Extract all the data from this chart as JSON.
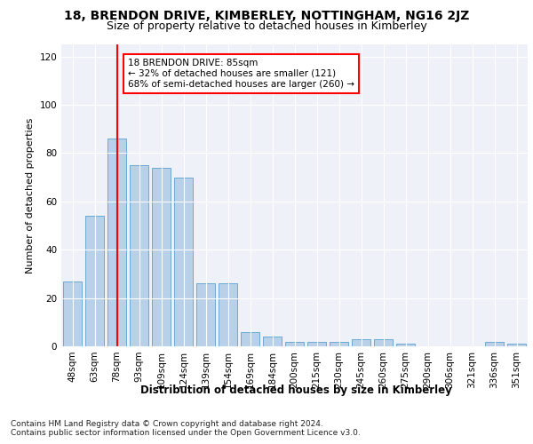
{
  "title": "18, BRENDON DRIVE, KIMBERLEY, NOTTINGHAM, NG16 2JZ",
  "subtitle": "Size of property relative to detached houses in Kimberley",
  "xlabel": "Distribution of detached houses by size in Kimberley",
  "ylabel": "Number of detached properties",
  "categories": [
    "48sqm",
    "63sqm",
    "78sqm",
    "93sqm",
    "109sqm",
    "124sqm",
    "139sqm",
    "154sqm",
    "169sqm",
    "184sqm",
    "200sqm",
    "215sqm",
    "230sqm",
    "245sqm",
    "260sqm",
    "275sqm",
    "290sqm",
    "306sqm",
    "321sqm",
    "336sqm",
    "351sqm"
  ],
  "values": [
    27,
    54,
    86,
    75,
    74,
    70,
    26,
    26,
    6,
    4,
    2,
    2,
    2,
    3,
    3,
    1,
    0,
    0,
    0,
    2,
    1
  ],
  "bar_color": "#b8d0e8",
  "bar_edge_color": "#6aaad4",
  "vline_x": 2,
  "vline_color": "red",
  "annotation_text": "18 BRENDON DRIVE: 85sqm\n← 32% of detached houses are smaller (121)\n68% of semi-detached houses are larger (260) →",
  "annotation_box_color": "white",
  "annotation_box_edge": "red",
  "ylim": [
    0,
    125
  ],
  "yticks": [
    0,
    20,
    40,
    60,
    80,
    100,
    120
  ],
  "background_color": "#eef2f8",
  "footer1": "Contains HM Land Registry data © Crown copyright and database right 2024.",
  "footer2": "Contains public sector information licensed under the Open Government Licence v3.0.",
  "title_fontsize": 10,
  "subtitle_fontsize": 9,
  "xlabel_fontsize": 8.5,
  "ylabel_fontsize": 8,
  "tick_fontsize": 7.5,
  "annotation_fontsize": 7.5,
  "footer_fontsize": 6.5
}
